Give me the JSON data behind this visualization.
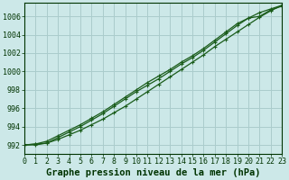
{
  "title": "Graphe pression niveau de la mer (hPa)",
  "background_color": "#cce8e8",
  "grid_color": "#aacccc",
  "line_color": "#1a5c1a",
  "xlim": [
    0,
    23
  ],
  "ylim": [
    991.0,
    1007.5
  ],
  "yticks": [
    992,
    994,
    996,
    998,
    1000,
    1002,
    1004,
    1006
  ],
  "xticks": [
    0,
    1,
    2,
    3,
    4,
    5,
    6,
    7,
    8,
    9,
    10,
    11,
    12,
    13,
    14,
    15,
    16,
    17,
    18,
    19,
    20,
    21,
    22,
    23
  ],
  "series": [
    [
      992.0,
      992.1,
      992.2,
      992.6,
      993.1,
      993.6,
      994.2,
      994.8,
      995.5,
      996.2,
      997.0,
      997.8,
      998.6,
      999.4,
      1000.2,
      1001.0,
      1001.8,
      1002.7,
      1003.5,
      1004.3,
      1005.1,
      1005.9,
      1006.6,
      1007.2
    ],
    [
      992.0,
      992.0,
      992.2,
      992.8,
      993.4,
      994.0,
      994.7,
      995.4,
      996.2,
      997.0,
      997.8,
      998.5,
      999.2,
      1000.0,
      1000.8,
      1001.5,
      1002.3,
      1003.2,
      1004.1,
      1005.0,
      1005.8,
      1006.4,
      1006.8,
      1007.2
    ],
    [
      992.0,
      992.1,
      992.4,
      993.0,
      993.6,
      994.2,
      994.9,
      995.6,
      996.4,
      997.2,
      998.0,
      998.8,
      999.5,
      1000.2,
      1001.0,
      1001.7,
      1002.5,
      1003.4,
      1004.3,
      1005.2,
      1005.8,
      1006.0,
      1006.7,
      1007.1
    ]
  ],
  "title_fontsize": 7.5,
  "tick_fontsize": 6,
  "title_color": "#003300",
  "tick_color": "#003300",
  "figsize": [
    3.2,
    2.0
  ],
  "dpi": 100
}
